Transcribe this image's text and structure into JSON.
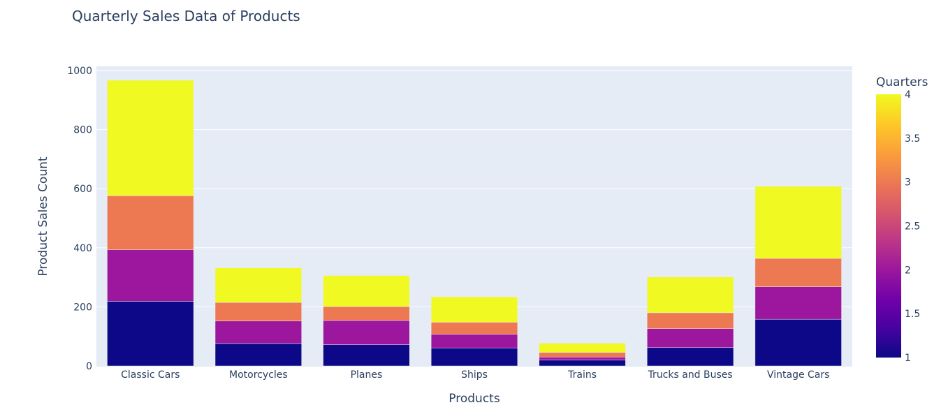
{
  "chart_data": {
    "type": "bar",
    "stacked": true,
    "title": "Quarterly Sales Data of Products",
    "xlabel": "Products",
    "ylabel": "Product Sales Count",
    "ylim": [
      0,
      1000
    ],
    "yticks": [
      0,
      200,
      400,
      600,
      800,
      1000
    ],
    "grid": true,
    "categories": [
      "Classic Cars",
      "Motorcycles",
      "Planes",
      "Ships",
      "Trains",
      "Trucks and Buses",
      "Vintage Cars"
    ],
    "series": [
      {
        "quarter": 1,
        "color": "#0d0887",
        "values": [
          219,
          76,
          72,
          61,
          20,
          62,
          158
        ]
      },
      {
        "quarter": 2,
        "color": "#9c179e",
        "values": [
          174,
          76,
          82,
          46,
          10,
          64,
          110
        ]
      },
      {
        "quarter": 3,
        "color": "#ed7953",
        "values": [
          183,
          63,
          47,
          41,
          16,
          54,
          96
        ]
      },
      {
        "quarter": 4,
        "color": "#f0f921",
        "values": [
          391,
          117,
          105,
          86,
          31,
          121,
          244
        ]
      }
    ],
    "colorbar": {
      "title": "Quarters",
      "range": [
        1,
        4
      ],
      "ticks": [
        "1",
        "1.5",
        "2",
        "2.5",
        "3",
        "3.5",
        "4"
      ],
      "colorscale": [
        "#0d0887",
        "#46039f",
        "#7201a8",
        "#9c179e",
        "#bd3786",
        "#d8576b",
        "#ed7953",
        "#fb9f3a",
        "#fdca26",
        "#f0f921"
      ]
    },
    "plot_bg": "#e5ecf6",
    "grid_color": "#ffffff"
  }
}
